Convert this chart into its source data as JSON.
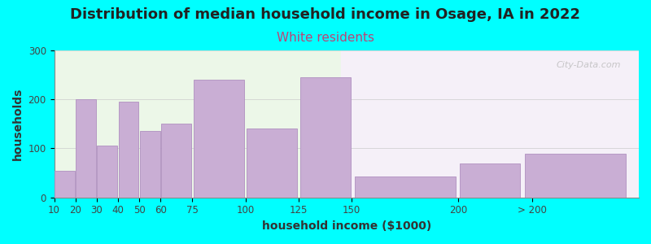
{
  "title": "Distribution of median household income in Osage, IA in 2022",
  "subtitle": "White residents",
  "xlabel": "household income ($1000)",
  "ylabel": "households",
  "background_color": "#00FFFF",
  "bar_color": "#c9aed4",
  "bar_edge_color": "#b090c0",
  "categories": [
    "10",
    "20",
    "30",
    "40",
    "50",
    "60",
    "75",
    "100",
    "125",
    "150",
    "200",
    "> 200"
  ],
  "bar_lefts": [
    10,
    20,
    30,
    40,
    50,
    60,
    75,
    100,
    125,
    150,
    200,
    230
  ],
  "bar_widths": [
    10,
    10,
    10,
    10,
    10,
    15,
    25,
    25,
    25,
    50,
    30,
    50
  ],
  "values": [
    55,
    200,
    105,
    195,
    135,
    150,
    240,
    140,
    245,
    42,
    70,
    90
  ],
  "ylim": [
    0,
    300
  ],
  "yticks": [
    0,
    100,
    200,
    300
  ],
  "xlim": [
    10,
    285
  ],
  "xtick_positions": [
    10,
    20,
    30,
    40,
    50,
    60,
    75,
    100,
    125,
    150,
    200,
    235
  ],
  "xtick_labels": [
    "10",
    "20",
    "30",
    "40",
    "50",
    "60",
    "75",
    "100",
    "125",
    "150",
    "200",
    "> 200"
  ],
  "title_fontsize": 13,
  "subtitle_fontsize": 11,
  "subtitle_color": "#bb4477",
  "axis_label_fontsize": 10,
  "tick_fontsize": 8.5,
  "bg_left_color": "#ecf7e8",
  "bg_right_color": "#f5f0f8",
  "bg_split_x": 145,
  "watermark": "City-Data.com"
}
